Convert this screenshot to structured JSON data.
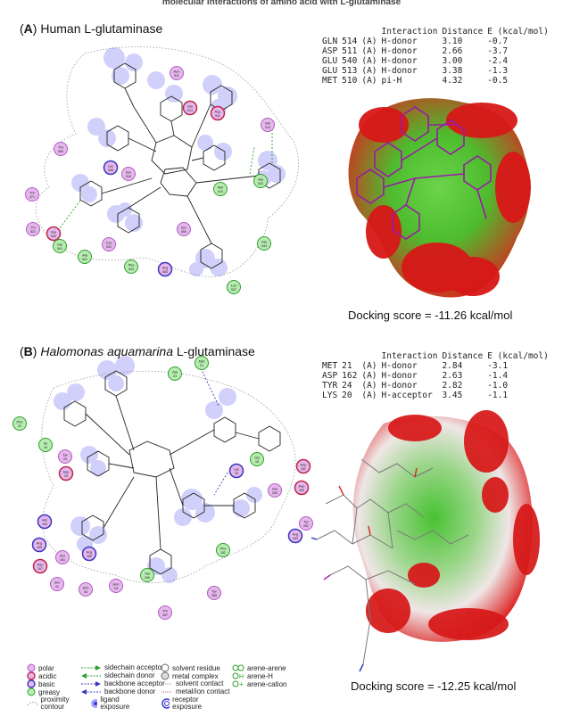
{
  "page_top_title": "molecular interactions of amino acid with L-glutaminase",
  "panels": [
    {
      "label_letter": "A",
      "label_rest": " Human L-glutaminase",
      "label_italic": "",
      "label_tail": "",
      "table_headers": [
        "Interaction",
        "Distance",
        "E (kcal/mol)"
      ],
      "rows": [
        {
          "res": "GLN",
          "num": "514",
          "chain": "(A)",
          "type": "H-donor",
          "dist": "3.10",
          "e": "-0.7"
        },
        {
          "res": "ASP",
          "num": "511",
          "chain": "(A)",
          "type": "H-donor",
          "dist": "2.66",
          "e": "-3.7"
        },
        {
          "res": "GLU",
          "num": "540",
          "chain": "(A)",
          "type": "H-donor",
          "dist": "3.00",
          "e": "-2.4"
        },
        {
          "res": "GLU",
          "num": "513",
          "chain": "(A)",
          "type": "H-donor",
          "dist": "3.38",
          "e": "-1.3"
        },
        {
          "res": "MET",
          "num": "510",
          "chain": "(A)",
          "type": "pi-H",
          "dist": "4.32",
          "e": "-0.5"
        }
      ],
      "score": "Docking score = -11.26 kcal/mol",
      "residues": [
        {
          "name": "Asn",
          "num": "511",
          "type": "polar"
        },
        {
          "name": "Glu",
          "num": "513",
          "type": "acidic"
        },
        {
          "name": "Asp",
          "num": "511",
          "type": "acidic"
        },
        {
          "name": "Gln",
          "num": "514",
          "type": "polar"
        },
        {
          "name": "Thr",
          "num": "550",
          "type": "polar"
        },
        {
          "name": "Thr",
          "num": "571",
          "type": "polar"
        },
        {
          "name": "Lys",
          "num": "548",
          "type": "basic"
        },
        {
          "name": "Ser",
          "num": "516",
          "type": "polar"
        },
        {
          "name": "Ala",
          "num": "532",
          "type": "greasy"
        },
        {
          "name": "Met",
          "num": "510",
          "type": "greasy"
        },
        {
          "name": "Thr",
          "num": "565",
          "type": "polar"
        },
        {
          "name": "Thr",
          "num": "521",
          "type": "polar"
        },
        {
          "name": "Glu",
          "num": "540",
          "type": "acidic"
        },
        {
          "name": "Gly",
          "num": "541",
          "type": "greasy"
        },
        {
          "name": "Ala",
          "num": "541",
          "type": "greasy"
        },
        {
          "name": "Cys",
          "num": "542",
          "type": "polar"
        },
        {
          "name": "Ser",
          "num": "500",
          "type": "polar"
        },
        {
          "name": "Phe",
          "num": "543",
          "type": "greasy"
        },
        {
          "name": "Arg",
          "num": "553",
          "type": "basic"
        },
        {
          "name": "Ala",
          "num": "544",
          "type": "greasy"
        },
        {
          "name": "Leu",
          "num": "537",
          "type": "greasy"
        }
      ]
    },
    {
      "label_letter": "B",
      "label_rest": " ",
      "label_italic": "Halomonas aquamarina",
      "label_tail": " L-glutaminase",
      "table_headers": [
        "Interaction",
        "Distance",
        "E (kcal/mol)"
      ],
      "rows": [
        {
          "res": "MET",
          "num": "21",
          "chain": "(A)",
          "type": "H-donor",
          "dist": "2.84",
          "e": "-3.1"
        },
        {
          "res": "ASP",
          "num": "162",
          "chain": "(A)",
          "type": "H-donor",
          "dist": "2.63",
          "e": "-1.4"
        },
        {
          "res": "TYR",
          "num": "24",
          "chain": "(A)",
          "type": "H-donor",
          "dist": "2.82",
          "e": "-1.0"
        },
        {
          "res": "LYS",
          "num": "20",
          "chain": "(A)",
          "type": "H-acceptor",
          "dist": "3.45",
          "e": "-1.1"
        }
      ],
      "score": "Docking score = -12.25 kcal/mol",
      "residues": [
        {
          "name": "Met",
          "num": "21",
          "type": "greasy"
        },
        {
          "name": "Ala",
          "num": "23",
          "type": "greasy"
        },
        {
          "name": "Phe",
          "num": "22",
          "type": "greasy"
        },
        {
          "name": "Ile",
          "num": "19",
          "type": "greasy"
        },
        {
          "name": "Tyr",
          "num": "24",
          "type": "polar"
        },
        {
          "name": "Asp",
          "num": "25",
          "type": "acidic"
        },
        {
          "name": "Lys",
          "num": "20",
          "type": "basic"
        },
        {
          "name": "Gly",
          "num": "18",
          "type": "greasy"
        },
        {
          "name": "Asp",
          "num": "162",
          "type": "acidic"
        },
        {
          "name": "Asp",
          "num": "260",
          "type": "acidic"
        },
        {
          "name": "Gln",
          "num": "263",
          "type": "polar"
        },
        {
          "name": "Tyr",
          "num": "262",
          "type": "polar"
        },
        {
          "name": "His",
          "num": "164",
          "type": "basic"
        },
        {
          "name": "Arg",
          "num": "165",
          "type": "basic"
        },
        {
          "name": "Ser",
          "num": "161",
          "type": "polar"
        },
        {
          "name": "Arg",
          "num": "160",
          "type": "basic"
        },
        {
          "name": "Phe",
          "num": "152",
          "type": "greasy"
        },
        {
          "name": "Arg",
          "num": "163",
          "type": "basic"
        },
        {
          "name": "Val",
          "num": "266",
          "type": "greasy"
        },
        {
          "name": "Ser",
          "num": "41",
          "type": "polar"
        },
        {
          "name": "Asn",
          "num": "44",
          "type": "polar"
        },
        {
          "name": "Asn",
          "num": "111",
          "type": "polar"
        },
        {
          "name": "Tyr",
          "num": "285",
          "type": "polar"
        },
        {
          "name": "Thr",
          "num": "287",
          "type": "polar"
        },
        {
          "name": "Asp",
          "num": "267",
          "type": "acidic"
        }
      ]
    }
  ],
  "legend": {
    "residue_types": [
      {
        "label": "polar",
        "color": "#e5b7ec",
        "stroke": "#b05cc0"
      },
      {
        "label": "acidic",
        "color": "#e5b7ec",
        "stroke": "#c0254a"
      },
      {
        "label": "basic",
        "color": "#e5b7ec",
        "stroke": "#3c36c0"
      },
      {
        "label": "greasy",
        "color": "#b7ecb0",
        "stroke": "#2e9e2e"
      },
      {
        "label": "proximity contour",
        "color": "#ffffff",
        "stroke": "#999999"
      }
    ],
    "interactions": [
      {
        "label": "sidechain acceptor",
        "color": "#2e9e2e"
      },
      {
        "label": "sidechain donor",
        "color": "#2e9e2e"
      },
      {
        "label": "backbone acceptor",
        "color": "#3c36c0"
      },
      {
        "label": "backbone donor",
        "color": "#3c36c0"
      },
      {
        "label": "ligand exposure",
        "color": "#3a3ae0"
      }
    ],
    "other": [
      {
        "label": "solvent residue"
      },
      {
        "label": "metal complex"
      },
      {
        "label": "solvent contact"
      },
      {
        "label": "metal/ion contact"
      },
      {
        "label": "receptor exposure"
      }
    ],
    "arene": [
      {
        "label": "arene-arene"
      },
      {
        "label": "arene-H"
      },
      {
        "label": "arene-cation"
      }
    ]
  }
}
